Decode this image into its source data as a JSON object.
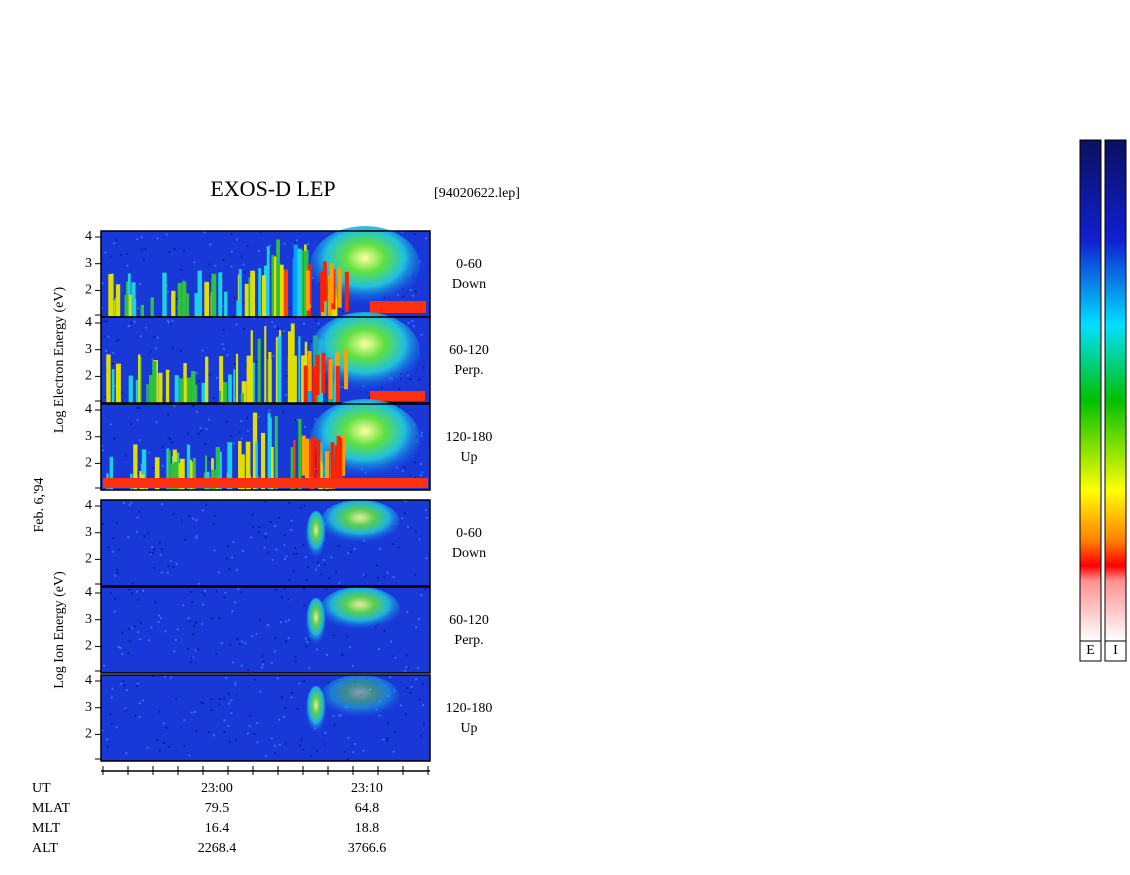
{
  "title": "EXOS-D LEP",
  "file": "[94020622.lep]",
  "electron_axis_label": "Log Electron Energy (eV)",
  "ion_axis_label": "Log Ion Energy (eV)",
  "date": "Feb. 6,'94",
  "yticks": [
    2,
    3,
    4
  ],
  "panels": [
    {
      "pitch": "0-60",
      "direction": "Down"
    },
    {
      "pitch": "60-120",
      "direction": "Perp."
    },
    {
      "pitch": "120-180",
      "direction": "Up"
    },
    {
      "pitch": "0-60",
      "direction": "Down"
    },
    {
      "pitch": "60-120",
      "direction": "Perp."
    },
    {
      "pitch": "120-180",
      "direction": "Up"
    }
  ],
  "time_rows": [
    {
      "label": "UT",
      "values": [
        "23:00",
        "23:10"
      ]
    },
    {
      "label": "MLAT",
      "values": [
        "79.5",
        "64.8"
      ]
    },
    {
      "label": "MLT",
      "values": [
        "16.4",
        "18.8"
      ]
    },
    {
      "label": "ALT",
      "values": [
        "2268.4",
        "3766.6"
      ]
    }
  ],
  "colorbar_labels": [
    "E",
    "I"
  ]
}
